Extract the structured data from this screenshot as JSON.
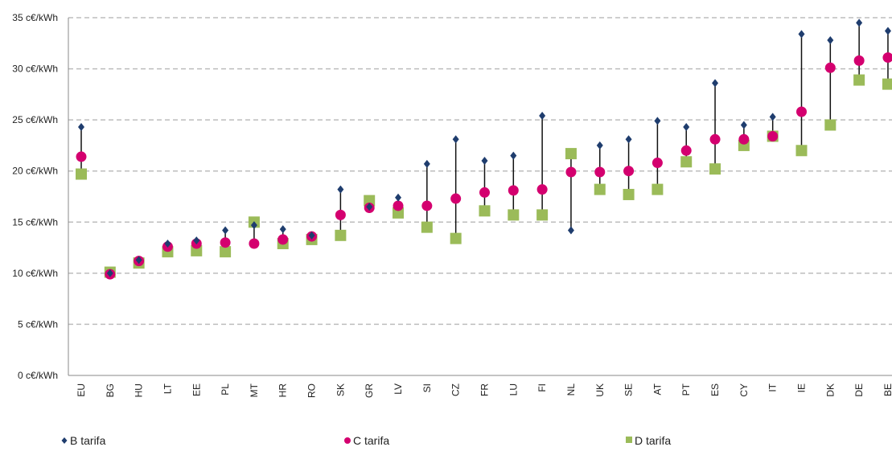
{
  "chart_data": {
    "type": "range-dot",
    "categories": [
      "EU",
      "BG",
      "HU",
      "LT",
      "EE",
      "PL",
      "MT",
      "HR",
      "RO",
      "SK",
      "GR",
      "LV",
      "SI",
      "CZ",
      "FR",
      "LU",
      "FI",
      "NL",
      "UK",
      "SE",
      "AT",
      "PT",
      "ES",
      "CY",
      "IT",
      "IE",
      "DK",
      "DE",
      "BE"
    ],
    "series": [
      {
        "name": "B tarifa",
        "color": "#1f3d6e",
        "marker": "diamond",
        "values": [
          24.3,
          10.0,
          11.3,
          12.9,
          13.2,
          14.2,
          14.7,
          14.3,
          13.7,
          18.2,
          16.5,
          17.4,
          20.7,
          23.1,
          21.0,
          21.5,
          25.4,
          14.2,
          22.5,
          23.1,
          24.9,
          24.3,
          28.6,
          24.5,
          25.3,
          33.4,
          32.8,
          34.5,
          33.7
        ]
      },
      {
        "name": "C tarifa",
        "color": "#d4006f",
        "marker": "circle",
        "values": [
          21.4,
          9.9,
          11.2,
          12.6,
          12.9,
          13.0,
          12.9,
          13.3,
          13.6,
          15.7,
          16.4,
          16.6,
          16.6,
          17.3,
          17.9,
          18.1,
          18.2,
          19.9,
          19.9,
          20.0,
          20.8,
          22.0,
          23.1,
          23.1,
          23.4,
          25.8,
          30.1,
          30.8,
          31.1
        ]
      },
      {
        "name": "D tarifa",
        "color": "#9bbb59",
        "marker": "square",
        "values": [
          19.7,
          10.1,
          11.0,
          12.1,
          12.2,
          12.1,
          15.0,
          12.9,
          13.3,
          13.7,
          17.1,
          15.9,
          14.5,
          13.4,
          16.1,
          15.7,
          15.7,
          21.7,
          18.2,
          17.7,
          18.2,
          20.9,
          20.2,
          22.5,
          23.4,
          22.0,
          24.5,
          28.9,
          28.5
        ]
      }
    ],
    "ylim": [
      0,
      35
    ],
    "yticks": [
      {
        "value": 0,
        "label": "0 c€/kWh"
      },
      {
        "value": 5,
        "label": "5 c€/kWh"
      },
      {
        "value": 10,
        "label": "10 c€/kWh"
      },
      {
        "value": 15,
        "label": "15 c€/kWh"
      },
      {
        "value": 20,
        "label": "20 c€/kWh"
      },
      {
        "value": 25,
        "label": "25 c€/kWh"
      },
      {
        "value": 30,
        "label": "30 c€/kWh"
      },
      {
        "value": 35,
        "label": "35 c€/kWh"
      }
    ],
    "grid": true,
    "legend": "bottom"
  }
}
